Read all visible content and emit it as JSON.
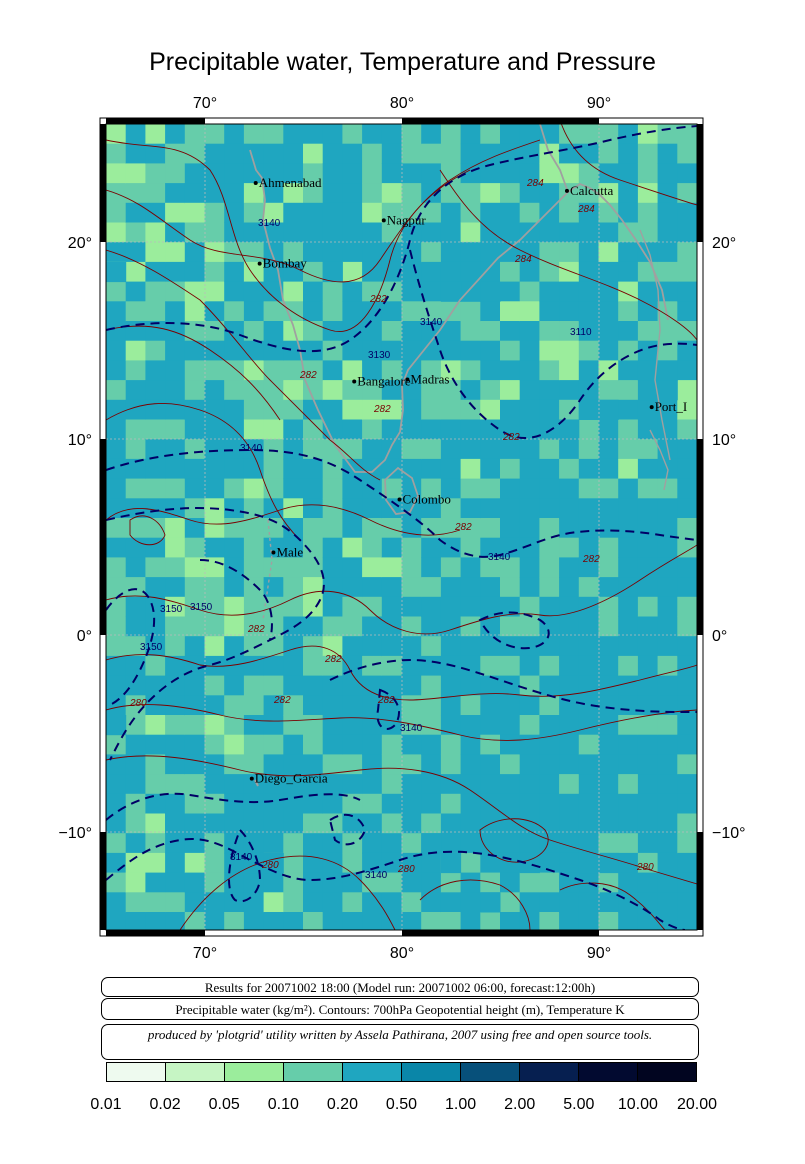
{
  "title": "Precipitable water, Temperature and Pressure",
  "map": {
    "lon_range": [
      65,
      95
    ],
    "lat_range": [
      -15,
      26
    ],
    "top_lon_ticks": [
      "70°",
      "80°",
      "90°"
    ],
    "bottom_lon_ticks": [
      "70°",
      "80°",
      "90°"
    ],
    "left_lat_ticks": [
      "20°",
      "10°",
      "0°",
      "−10°"
    ],
    "right_lat_ticks": [
      "20°",
      "10°",
      "0°",
      "−10°"
    ],
    "cities": [
      {
        "name": "Ahmenabad",
        "lon": 72.6,
        "lat": 23.0
      },
      {
        "name": "Nagpur",
        "lon": 79.1,
        "lat": 21.1
      },
      {
        "name": "Calcutta",
        "lon": 88.4,
        "lat": 22.6
      },
      {
        "name": "Bombay",
        "lon": 72.8,
        "lat": 18.9
      },
      {
        "name": "Bangalore",
        "lon": 77.6,
        "lat": 12.9
      },
      {
        "name": "Madras",
        "lon": 80.3,
        "lat": 13.0
      },
      {
        "name": "Port_I",
        "lon": 92.7,
        "lat": 11.6
      },
      {
        "name": "Colombo",
        "lon": 79.9,
        "lat": 6.9
      },
      {
        "name": "Male",
        "lon": 73.5,
        "lat": 4.2
      },
      {
        "name": "Diego_Garcia",
        "lon": 72.4,
        "lat": -7.3
      }
    ],
    "contour_labels_temperature": [
      "280",
      "284",
      "284",
      "284",
      "282",
      "282",
      "282",
      "282",
      "282",
      "282",
      "282",
      "282",
      "282",
      "282",
      "280",
      "280",
      "280"
    ],
    "contour_labels_geopotential": [
      "3140",
      "3110",
      "3130",
      "3140",
      "3140",
      "3150",
      "3150",
      "3150",
      "3140",
      "3140",
      "3140",
      "3140"
    ],
    "land_color": "#a0a0a0",
    "temperature_contour_color": "#7a0000",
    "geopotential_contour_color": "#000066"
  },
  "info": {
    "line1": "Results for 20071002 18:00 (Model run: 20071002 06:00, forecast:12:00h)",
    "line2": "Precipitable water (kg/m²).  Contours: 700hPa Geopotential height (m), Temperature K",
    "line3": "produced by 'plotgrid' utility written by Assela Pathirana, 2007 using free and open source tools."
  },
  "colorbar": {
    "labels": [
      "0.01",
      "0.02",
      "0.05",
      "0.10",
      "0.20",
      "0.50",
      "1.00",
      "2.00",
      "5.00",
      "10.00",
      "20.00"
    ],
    "colors": [
      "#eefaef",
      "#c6f5c4",
      "#9bed9c",
      "#66cdaa",
      "#1fa6c0",
      "#0a86a8",
      "#07507a",
      "#061f50",
      "#020a30",
      "#010520"
    ]
  }
}
